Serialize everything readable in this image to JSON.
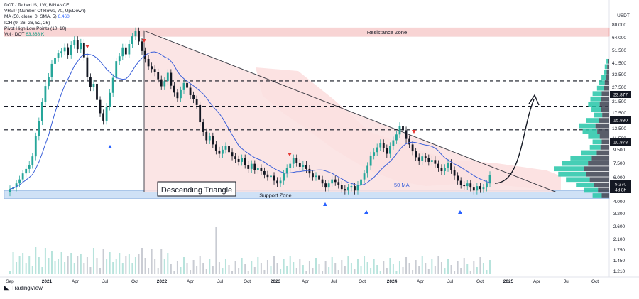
{
  "legend": {
    "symbol": "DOT / TetherUS, 1W, BINANCE",
    "vrvp": "VRVP (Number Of Rows, 70, Up/Down)",
    "ma_label": "MA (50, close, 0, SMA, 5)",
    "ma_value": "6.460",
    "ichimoku": "ICH (9, 26, 26, 52, 26)",
    "pivots": "Pivot High Low Points (10, 10)",
    "vol_label": "Vol · DOT",
    "vol_value": "63.368 K"
  },
  "axis": {
    "currency": "USDT",
    "price_ticks": [
      "80.000",
      "64.000",
      "51.500",
      "41.500",
      "33.500",
      "27.500",
      "21.500",
      "17.500",
      "13.500",
      "11.500",
      "9.500",
      "7.500",
      "6.000",
      "4.000",
      "3.200",
      "2.600",
      "2.100",
      "1.750",
      "1.450",
      "1.210"
    ],
    "time_ticks": [
      "Sep",
      "2021",
      "Apr",
      "Jul",
      "Oct",
      "2022",
      "Apr",
      "Jul",
      "Oct",
      "2023",
      "Apr",
      "Jul",
      "Oct",
      "2024",
      "Apr",
      "Jul",
      "Oct",
      "2025",
      "Apr",
      "Jul",
      "Oct"
    ]
  },
  "price_tags": [
    {
      "value": "23.877",
      "color": "#131722"
    },
    {
      "value": "15.880",
      "color": "#131722"
    },
    {
      "value": "10.878",
      "color": "#131722"
    },
    {
      "value": "5.270",
      "color": "#131722"
    },
    {
      "value": "4d 8h",
      "color": "#131722"
    }
  ],
  "annotations": {
    "resistance": "Resistance Zone",
    "support": "Support Zone",
    "pattern": "Descending Triangle",
    "ma": "50 MA"
  },
  "brand": "TradingView",
  "colors": {
    "up": "#26a69a",
    "down": "#131722",
    "ma": "#3a5fd9",
    "resistance_fill": "#f8d4d4",
    "support_fill": "#cfe1f6",
    "triangle_fill": "#fbe1e1",
    "volume_profile_up": "#26c6a8",
    "volume_profile_down": "#3c4150",
    "pivot_high": "#e53935",
    "pivot_low": "#2962ff"
  },
  "chart_data": {
    "type": "candlestick",
    "title": "DOT / TetherUS, 1W, BINANCE",
    "y_scale": "log",
    "ylim": [
      3.2,
      80
    ],
    "resistance_zone": [
      49,
      56
    ],
    "support_zone": [
      3.6,
      4.1
    ],
    "horizontal_levels": [
      23.877,
      15.88,
      10.878
    ],
    "closes": [
      4.2,
      4.3,
      4.6,
      4.9,
      5.4,
      5.8,
      6.2,
      7.1,
      9.8,
      12.5,
      17.1,
      22.0,
      25.5,
      31.4,
      34.6,
      37.2,
      38.4,
      41.0,
      36.2,
      42.6,
      46.1,
      39.8,
      44.2,
      34.9,
      25.4,
      21.6,
      22.8,
      17.6,
      14.2,
      12.6,
      15.8,
      19.7,
      25.1,
      32.8,
      35.5,
      40.9,
      36.6,
      43.2,
      48.9,
      53.1,
      45.0,
      38.6,
      34.0,
      30.2,
      28.9,
      27.4,
      24.5,
      21.9,
      23.8,
      27.2,
      22.1,
      19.8,
      18.1,
      20.6,
      23.1,
      21.4,
      19.0,
      17.8,
      16.2,
      12.3,
      10.5,
      9.2,
      9.8,
      8.6,
      7.8,
      7.4,
      7.9,
      8.4,
      7.6,
      7.1,
      6.8,
      6.5,
      6.9,
      6.2,
      5.8,
      6.3,
      5.7,
      5.9,
      5.6,
      5.3,
      5.1,
      5.2,
      4.8,
      4.6,
      4.8,
      5.4,
      5.9,
      6.3,
      6.9,
      6.4,
      6.0,
      6.2,
      5.8,
      5.4,
      5.1,
      5.2,
      4.9,
      4.6,
      4.3,
      4.6,
      4.9,
      4.7,
      4.5,
      4.2,
      4.1,
      4.3,
      4.4,
      4.1,
      4.5,
      4.9,
      5.4,
      6.1,
      7.2,
      7.6,
      8.2,
      8.8,
      8.1,
      7.4,
      8.4,
      9.2,
      10.1,
      11.6,
      10.8,
      9.4,
      8.6,
      7.7,
      7.0,
      6.6,
      7.1,
      6.9,
      6.5,
      6.7,
      6.3,
      5.9,
      5.6,
      5.9,
      6.4,
      5.7,
      5.2,
      4.8,
      4.5,
      4.4,
      4.6,
      4.3,
      4.1,
      4.4,
      4.2,
      4.3,
      4.6,
      5.27
    ],
    "ma50_label": "50 MA"
  }
}
